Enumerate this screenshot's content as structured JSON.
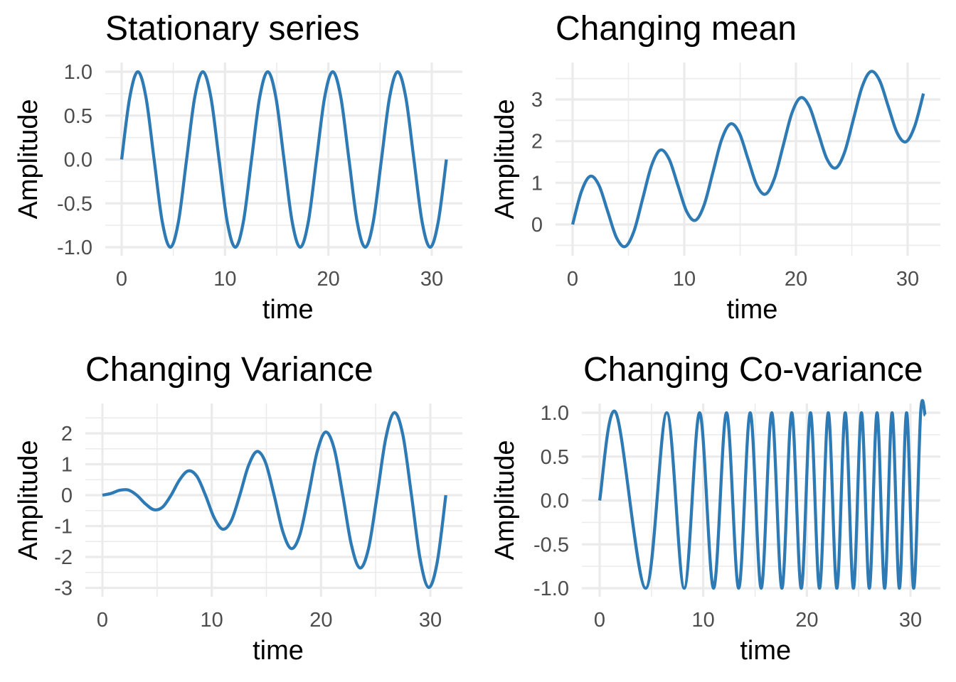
{
  "figure": {
    "line_color": "#2e7ab4",
    "grid_color": "#ebebeb",
    "background": "#ffffff"
  },
  "chart_data": [
    {
      "type": "line",
      "title": "Stationary series",
      "xlabel": "time",
      "ylabel": "Amplitude",
      "xlim": [
        0,
        31.4
      ],
      "ylim": [
        -1,
        1
      ],
      "xticks": [
        0,
        10,
        20,
        30
      ],
      "xtick_labels": [
        "0",
        "10",
        "20",
        "30"
      ],
      "yticks": [
        -1,
        -0.5,
        0,
        0.5,
        1
      ],
      "ytick_labels": [
        "-1.0",
        "-0.5",
        "0.0",
        "0.5",
        "1.0"
      ],
      "grid": true,
      "x": [
        0,
        0.785,
        1.571,
        2.356,
        3.142,
        3.927,
        4.712,
        5.498,
        6.283,
        7.069,
        7.854,
        8.639,
        9.425,
        10.21,
        10.996,
        11.781,
        12.566,
        13.352,
        14.137,
        14.923,
        15.708,
        16.493,
        17.279,
        18.064,
        18.85,
        19.635,
        20.42,
        21.206,
        21.991,
        22.777,
        23.562,
        24.347,
        25.133,
        25.918,
        26.704,
        27.489,
        28.274,
        29.06,
        29.845,
        30.631,
        31.416
      ],
      "y": [
        0,
        0.707,
        1,
        0.707,
        0,
        -0.707,
        -1,
        -0.707,
        0,
        0.707,
        1,
        0.707,
        0,
        -0.707,
        -1,
        -0.707,
        0,
        0.707,
        1,
        0.707,
        0,
        -0.707,
        -1,
        -0.707,
        0,
        0.707,
        1,
        0.707,
        0,
        -0.707,
        -1,
        -0.707,
        0,
        0.707,
        1,
        0.707,
        0,
        -0.707,
        -1,
        -0.707,
        0
      ]
    },
    {
      "type": "line",
      "title": "Changing mean",
      "xlabel": "time",
      "ylabel": "Amplitude",
      "xlim": [
        0,
        31.4
      ],
      "ylim": [
        -0.55,
        3.75
      ],
      "xticks": [
        0,
        10,
        20,
        30
      ],
      "xtick_labels": [
        "0",
        "10",
        "20",
        "30"
      ],
      "yticks": [
        0,
        1,
        2,
        3
      ],
      "ytick_labels": [
        "0",
        "1",
        "2",
        "3"
      ],
      "grid": true,
      "x": [
        0,
        0.785,
        1.571,
        2.356,
        3.142,
        3.927,
        4.712,
        5.498,
        6.283,
        7.069,
        7.854,
        8.639,
        9.425,
        10.21,
        10.996,
        11.781,
        12.566,
        13.352,
        14.137,
        14.923,
        15.708,
        16.493,
        17.279,
        18.064,
        18.85,
        19.635,
        20.42,
        21.206,
        21.991,
        22.777,
        23.562,
        24.347,
        25.133,
        25.918,
        26.704,
        27.489,
        28.274,
        29.06,
        29.845,
        30.631,
        31.416
      ],
      "y": [
        0,
        0.787,
        1.157,
        0.943,
        0.314,
        -0.314,
        -0.529,
        -0.157,
        0.628,
        1.414,
        1.785,
        1.571,
        0.942,
        0.314,
        0.1,
        0.471,
        1.257,
        2.042,
        2.414,
        2.2,
        1.571,
        0.943,
        0.728,
        1.1,
        1.885,
        2.671,
        3.042,
        2.828,
        2.199,
        1.571,
        1.356,
        1.728,
        2.513,
        3.299,
        3.671,
        3.456,
        2.827,
        2.199,
        1.985,
        2.356,
        3.142
      ]
    },
    {
      "type": "line",
      "title": "Changing Variance",
      "xlabel": "time",
      "ylabel": "Amplitude",
      "xlim": [
        0,
        31.4
      ],
      "ylim": [
        -3,
        2.75
      ],
      "xticks": [
        0,
        10,
        20,
        30
      ],
      "xtick_labels": [
        "0",
        "10",
        "20",
        "30"
      ],
      "yticks": [
        -3,
        -2,
        -1,
        0,
        1,
        2
      ],
      "ytick_labels": [
        "-3",
        "-2",
        "-1",
        "0",
        "1",
        "2"
      ],
      "grid": true,
      "x": [
        0,
        0.785,
        1.571,
        2.356,
        3.142,
        3.927,
        4.712,
        5.498,
        6.283,
        7.069,
        7.854,
        8.639,
        9.425,
        10.21,
        10.996,
        11.781,
        12.566,
        13.352,
        14.137,
        14.923,
        15.708,
        16.493,
        17.279,
        18.064,
        18.85,
        19.635,
        20.42,
        21.206,
        21.991,
        22.777,
        23.562,
        24.347,
        25.133,
        25.918,
        26.704,
        27.489,
        28.274,
        29.06,
        29.845,
        30.631,
        31.416
      ],
      "y": [
        0,
        0.056,
        0.157,
        0.167,
        0,
        -0.278,
        -0.471,
        -0.389,
        0,
        0.5,
        0.785,
        0.611,
        0,
        -0.722,
        -1.1,
        -0.833,
        0,
        0.944,
        1.414,
        1.055,
        0,
        -1.166,
        -1.728,
        -1.277,
        0,
        1.388,
        2.042,
        1.499,
        0,
        -1.61,
        -2.356,
        -1.721,
        0,
        1.832,
        2.67,
        1.943,
        0,
        -2.055,
        -2.985,
        -2.165,
        0
      ]
    },
    {
      "type": "line",
      "title": "Changing Co-variance",
      "xlabel": "time",
      "ylabel": "Amplitude",
      "xlim": [
        0,
        31.4
      ],
      "ylim": [
        -1,
        1
      ],
      "xticks": [
        0,
        10,
        20,
        30
      ],
      "xtick_labels": [
        "0",
        "10",
        "20",
        "30"
      ],
      "yticks": [
        -1,
        -0.5,
        0,
        0.5,
        1
      ],
      "ytick_labels": [
        "-1.0",
        "-0.5",
        "0.0",
        "0.5",
        "1.0"
      ],
      "grid": true,
      "x": [
        0,
        1.571,
        4.443,
        6.478,
        8.162,
        9.647,
        10.996,
        12.246,
        13.419,
        14.531,
        15.592,
        16.61,
        17.591,
        18.539,
        19.458,
        20.351,
        21.221,
        22.068,
        22.895,
        23.704,
        24.495,
        25.27,
        26.03,
        26.775,
        27.507,
        28.225,
        28.931,
        29.625,
        30.308,
        30.98,
        31.416
      ],
      "y": [
        0,
        1,
        -1,
        1,
        -1,
        1,
        -1,
        1,
        -1,
        1,
        -1,
        1,
        -1,
        1,
        -1,
        1,
        -1,
        1,
        -1,
        1,
        -1,
        1,
        -1,
        1,
        -1,
        1,
        -1,
        1,
        -1,
        1,
        0.97
      ]
    }
  ]
}
